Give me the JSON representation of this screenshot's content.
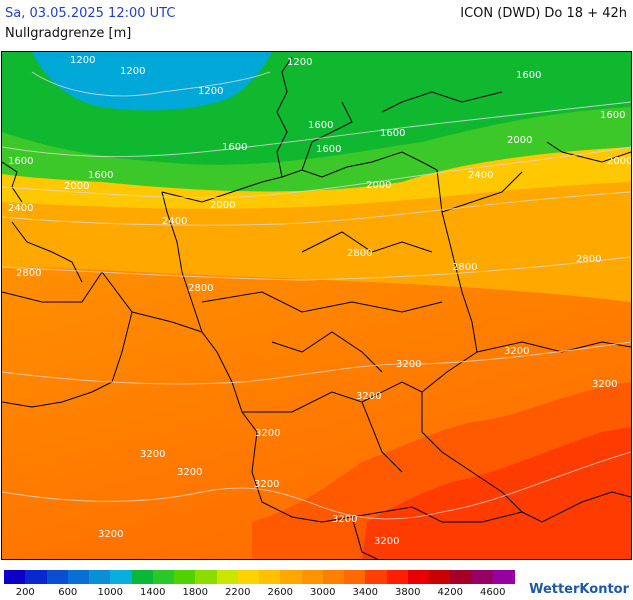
{
  "header": {
    "datetime": "Sa, 03.05.2025 12:00 UTC",
    "model": "ICON (DWD) Do 18 + 42h",
    "parameter": "Nullgradgrenze [m]"
  },
  "map": {
    "contour_labels": [
      "1200",
      "1200",
      "1200",
      "1200",
      "1600",
      "1600",
      "1600",
      "1600",
      "1600",
      "1600",
      "1600",
      "1600",
      "2000",
      "2000",
      "2000",
      "2000",
      "2000",
      "2400",
      "2400",
      "2400",
      "2800",
      "2800",
      "2800",
      "2800",
      "2800",
      "3200",
      "3200",
      "3200",
      "3200",
      "3200",
      "3200",
      "3200",
      "3200",
      "3200",
      "3200",
      "3200"
    ]
  },
  "legend": {
    "colors": [
      "#0a00c8",
      "#0a28d2",
      "#0a4fd2",
      "#0a6fd4",
      "#0a8fd6",
      "#0aaedc",
      "#0ab838",
      "#28c828",
      "#50d200",
      "#8cdc00",
      "#c8e600",
      "#ffd200",
      "#ffc000",
      "#ffa800",
      "#ff9400",
      "#ff8000",
      "#ff6a00",
      "#ff4000",
      "#ff1e00",
      "#e60000",
      "#c80000",
      "#a50028",
      "#960064",
      "#9600a0"
    ],
    "labels": [
      "200",
      "600",
      "1000",
      "1400",
      "1800",
      "2200",
      "2600",
      "3000",
      "3400",
      "3800",
      "4200",
      "4600"
    ]
  },
  "logo": {
    "text": "WetterKontor"
  }
}
